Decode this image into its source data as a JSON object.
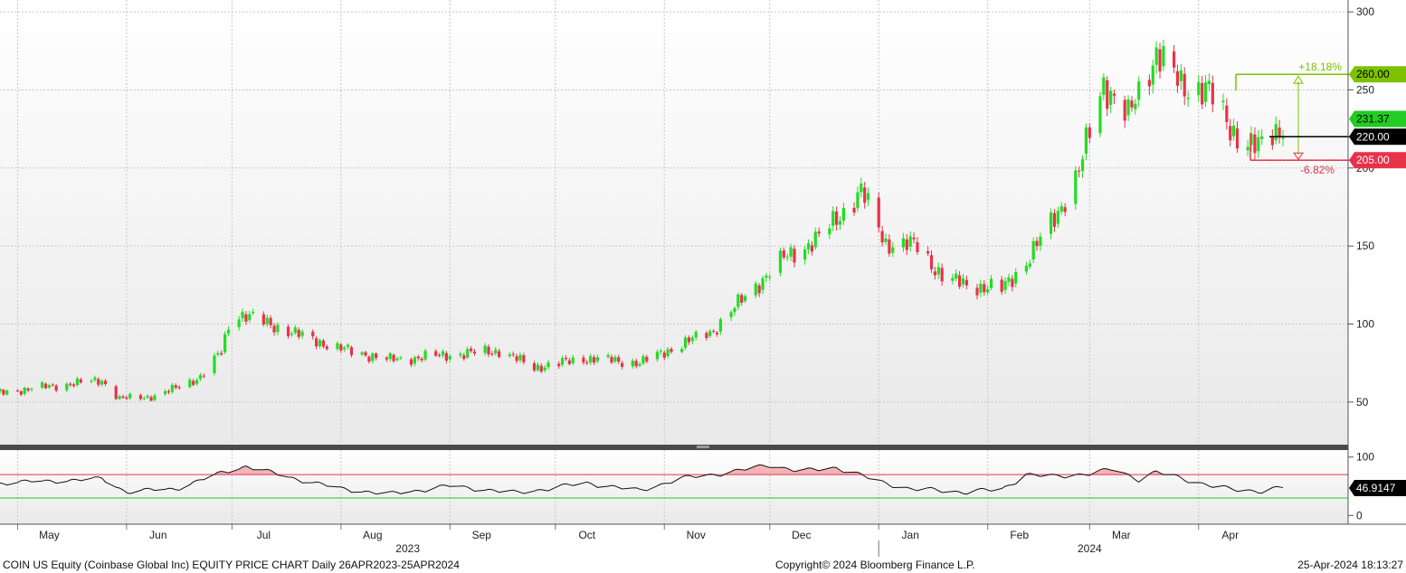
{
  "chart_data": [
    {
      "type": "candlestick",
      "ylim": [
        25,
        303
      ],
      "y_ticks": [
        50,
        100,
        150,
        200,
        250,
        300
      ],
      "x_months": [
        {
          "label": "May",
          "date": "2023-05-01"
        },
        {
          "label": "Jun",
          "date": "2023-06-01"
        },
        {
          "label": "Jul",
          "date": "2023-07-01"
        },
        {
          "label": "Aug",
          "date": "2023-08-01"
        },
        {
          "label": "Sep",
          "date": "2023-09-01"
        },
        {
          "label": "Oct",
          "date": "2023-10-01"
        },
        {
          "label": "Nov",
          "date": "2023-11-01"
        },
        {
          "label": "Dec",
          "date": "2023-12-01"
        },
        {
          "label": "Jan",
          "date": "2024-01-01"
        },
        {
          "label": "Feb",
          "date": "2024-02-01"
        },
        {
          "label": "Mar",
          "date": "2024-03-01"
        },
        {
          "label": "Apr",
          "date": "2024-04-01"
        }
      ],
      "year_labels": [
        {
          "label": "2023",
          "date": "2023-08-20"
        },
        {
          "label": "2024",
          "date": "2024-03-01"
        }
      ],
      "year_divider": "2024-01-01",
      "close_anchors": [
        [
          "2023-04-26",
          56
        ],
        [
          "2023-05-10",
          60
        ],
        [
          "2023-05-25",
          64
        ],
        [
          "2023-05-30",
          52
        ],
        [
          "2023-06-10",
          54
        ],
        [
          "2023-06-22",
          66
        ],
        [
          "2023-06-28",
          82
        ],
        [
          "2023-07-01",
          108
        ],
        [
          "2023-07-08",
          103
        ],
        [
          "2023-07-20",
          93
        ],
        [
          "2023-08-01",
          84
        ],
        [
          "2023-08-15",
          77
        ],
        [
          "2023-08-31",
          80
        ],
        [
          "2023-09-15",
          83
        ],
        [
          "2023-09-25",
          72
        ],
        [
          "2023-10-10",
          78
        ],
        [
          "2023-10-25",
          75
        ],
        [
          "2023-11-05",
          86
        ],
        [
          "2023-11-15",
          96
        ],
        [
          "2023-11-25",
          120
        ],
        [
          "2023-12-05",
          142
        ],
        [
          "2023-12-15",
          155
        ],
        [
          "2023-12-27",
          185
        ],
        [
          "2024-01-03",
          152
        ],
        [
          "2024-01-12",
          150
        ],
        [
          "2024-01-20",
          128
        ],
        [
          "2024-01-27",
          125
        ],
        [
          "2024-02-05",
          122
        ],
        [
          "2024-02-12",
          140
        ],
        [
          "2024-02-20",
          168
        ],
        [
          "2024-02-27",
          198
        ],
        [
          "2024-03-05",
          255
        ],
        [
          "2024-03-12",
          232
        ],
        [
          "2024-03-20",
          275
        ],
        [
          "2024-03-27",
          252
        ],
        [
          "2024-04-03",
          252
        ],
        [
          "2024-04-10",
          225
        ],
        [
          "2024-04-18",
          212
        ],
        [
          "2024-04-25",
          228
        ]
      ],
      "high_low_markers": [
        {
          "value": 260.0,
          "label": "260.00",
          "pct": "+18.18%",
          "color": "#7dc100"
        },
        {
          "value": 205.0,
          "label": "205.00",
          "pct": "-6.82%",
          "color": "#e8324a"
        }
      ],
      "price_tags": [
        {
          "value": 231.37,
          "label": "231.37",
          "color": "#22cc22"
        },
        {
          "value": 220.0,
          "label": "220.00",
          "color": "#000000"
        }
      ],
      "colors": {
        "up": "#22dd22",
        "down": "#e8324a"
      }
    },
    {
      "type": "line",
      "ylim": [
        -15,
        112
      ],
      "y_ticks": [
        0,
        100
      ],
      "overbought": 70,
      "oversold": 30,
      "last_value": "46.9147",
      "anchors": [
        [
          "2023-04-26",
          55
        ],
        [
          "2023-05-10",
          58
        ],
        [
          "2023-05-25",
          62
        ],
        [
          "2023-06-01",
          40
        ],
        [
          "2023-06-15",
          45
        ],
        [
          "2023-06-28",
          72
        ],
        [
          "2023-07-05",
          84
        ],
        [
          "2023-07-15",
          68
        ],
        [
          "2023-08-01",
          45
        ],
        [
          "2023-08-15",
          36
        ],
        [
          "2023-09-01",
          50
        ],
        [
          "2023-09-20",
          38
        ],
        [
          "2023-10-10",
          55
        ],
        [
          "2023-10-25",
          42
        ],
        [
          "2023-11-05",
          62
        ],
        [
          "2023-11-20",
          74
        ],
        [
          "2023-12-01",
          86
        ],
        [
          "2023-12-10",
          75
        ],
        [
          "2023-12-20",
          82
        ],
        [
          "2024-01-01",
          58
        ],
        [
          "2024-01-10",
          45
        ],
        [
          "2024-01-25",
          40
        ],
        [
          "2024-02-05",
          44
        ],
        [
          "2024-02-12",
          70
        ],
        [
          "2024-02-20",
          66
        ],
        [
          "2024-03-01",
          72
        ],
        [
          "2024-03-08",
          78
        ],
        [
          "2024-03-15",
          62
        ],
        [
          "2024-03-20",
          74
        ],
        [
          "2024-04-01",
          56
        ],
        [
          "2024-04-10",
          44
        ],
        [
          "2024-04-18",
          42
        ],
        [
          "2024-04-25",
          47
        ]
      ],
      "colors": {
        "line": "#111111",
        "overbought": "#e8324a",
        "oversold": "#22cc22",
        "fill": "#f3b4b8"
      }
    }
  ],
  "footer": {
    "title": "COIN US Equity (Coinbase Global Inc) EQUITY PRICE CHART  Daily 26APR2023-25APR2024",
    "copyright": "Copyright© 2024 Bloomberg Finance L.P.",
    "timestamp": "25-Apr-2024 18:13:27"
  }
}
